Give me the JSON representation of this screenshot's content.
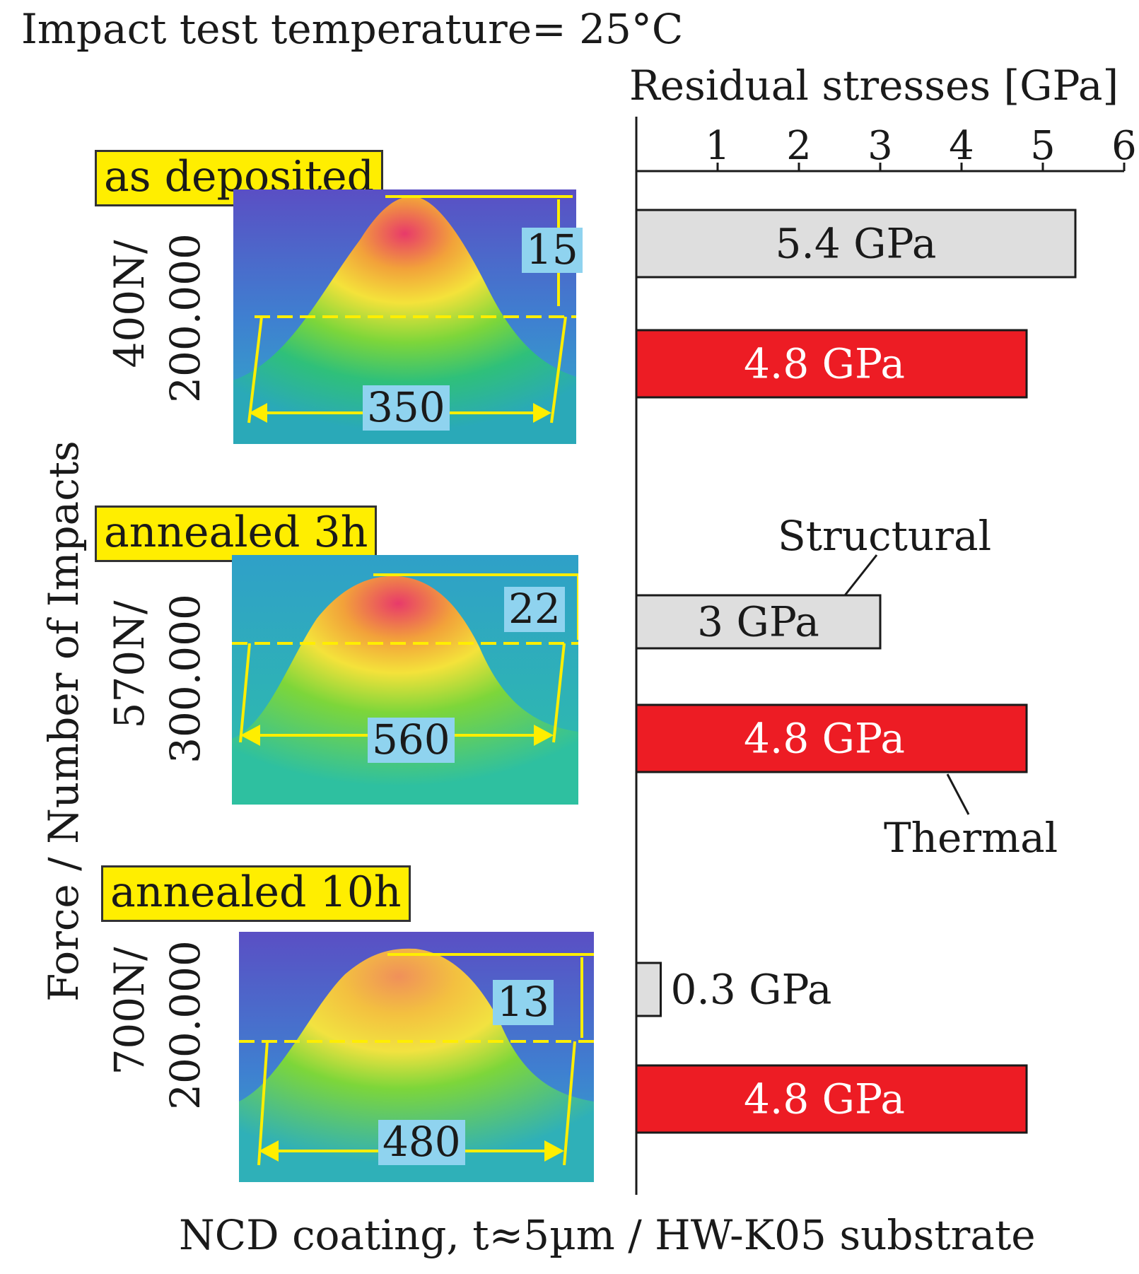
{
  "header": {
    "title": "Impact test temperature= 25°C",
    "footer": "NCD coating, t≈5µm / HW-K05 substrate",
    "y_axis_label": "Force / Number of Impacts"
  },
  "specimens": [
    {
      "condition": "as deposited",
      "force": "400N/",
      "impacts": "200.000",
      "height": "15",
      "width": "350"
    },
    {
      "condition": "annealed 3h",
      "force": "570N/",
      "impacts": "300.000",
      "height": "22",
      "width": "560"
    },
    {
      "condition": "annealed 10h",
      "force": "700N/",
      "impacts": "200.000",
      "height": "13",
      "width": "480"
    }
  ],
  "colors": {
    "structural": "#dedede",
    "thermal": "#ed1c24",
    "label_box": "#ffee00",
    "dim_box": "#8fd3ef"
  },
  "chart_data": {
    "type": "bar",
    "orientation": "horizontal",
    "title": "Residual stresses [GPa]",
    "xlim": [
      0,
      6
    ],
    "xticks": [
      "1",
      "2",
      "3",
      "4",
      "5",
      "6"
    ],
    "categories": [
      "as deposited",
      "annealed 3h",
      "annealed 10h"
    ],
    "series": [
      {
        "name": "Structural",
        "values": [
          5.4,
          3,
          0.3
        ],
        "labels": [
          "5.4 GPa",
          "3 GPa",
          "0.3 GPa"
        ]
      },
      {
        "name": "Thermal",
        "values": [
          4.8,
          4.8,
          4.8
        ],
        "labels": [
          "4.8 GPa",
          "4.8 GPa",
          "4.8 GPa"
        ]
      }
    ],
    "annotations": [
      "Structural",
      "Thermal"
    ]
  }
}
